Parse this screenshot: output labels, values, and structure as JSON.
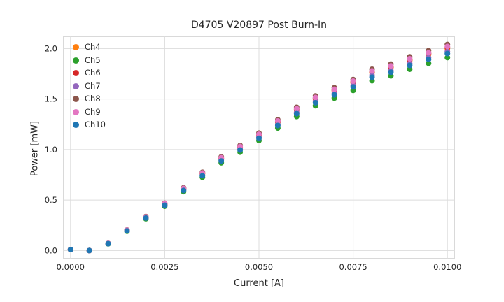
{
  "figure": {
    "title": "D4705 V20897 Post Burn-In",
    "xlabel": "Current [A]",
    "ylabel": "Power [mW]"
  },
  "chart_data": {
    "type": "scatter",
    "title": "D4705 V20897 Post Burn-In",
    "xlabel": "Current [A]",
    "ylabel": "Power [mW]",
    "grid": true,
    "grid_color": "#dcdcdc",
    "legend_position": "upper-left",
    "xlim": [
      -0.0002,
      0.0102
    ],
    "ylim": [
      -0.08,
      2.12
    ],
    "xticks": [
      0.0,
      0.0025,
      0.005,
      0.0075,
      0.01
    ],
    "xtick_labels": [
      "0.0000",
      "0.0025",
      "0.0050",
      "0.0075",
      "0.0100"
    ],
    "yticks": [
      0.0,
      0.5,
      1.0,
      1.5,
      2.0
    ],
    "ytick_labels": [
      "0.0",
      "0.5",
      "1.0",
      "1.5",
      "2.0"
    ],
    "x": [
      0.0,
      0.0005,
      0.001,
      0.0015,
      0.002,
      0.0025,
      0.003,
      0.0035,
      0.004,
      0.0045,
      0.005,
      0.0055,
      0.006,
      0.0065,
      0.007,
      0.0075,
      0.008,
      0.0085,
      0.009,
      0.0095,
      0.01
    ],
    "series": [
      {
        "name": "Ch4",
        "color": "#ff7f0e",
        "values": [
          0.01,
          0.0,
          0.07,
          0.2,
          0.33,
          0.46,
          0.61,
          0.76,
          0.91,
          1.02,
          1.14,
          1.27,
          1.39,
          1.5,
          1.58,
          1.66,
          1.76,
          1.81,
          1.88,
          1.94,
          2.0
        ]
      },
      {
        "name": "Ch5",
        "color": "#2ca02c",
        "values": [
          0.01,
          0.0,
          0.067,
          0.191,
          0.315,
          0.439,
          0.583,
          0.726,
          0.869,
          0.974,
          1.089,
          1.213,
          1.327,
          1.433,
          1.509,
          1.585,
          1.681,
          1.729,
          1.795,
          1.853,
          1.91
        ]
      },
      {
        "name": "Ch6",
        "color": "#d62728",
        "values": [
          0.01,
          0.0,
          0.07,
          0.201,
          0.332,
          0.462,
          0.613,
          0.764,
          0.915,
          1.025,
          1.146,
          1.276,
          1.397,
          1.508,
          1.588,
          1.668,
          1.769,
          1.819,
          1.889,
          1.95,
          2.01
        ]
      },
      {
        "name": "Ch7",
        "color": "#9467bd",
        "values": [
          0.01,
          0.0,
          0.069,
          0.197,
          0.325,
          0.453,
          0.601,
          0.749,
          0.896,
          1.005,
          1.123,
          1.251,
          1.369,
          1.478,
          1.556,
          1.635,
          1.734,
          1.783,
          1.852,
          1.911,
          1.97
        ]
      },
      {
        "name": "Ch8",
        "color": "#8c564b",
        "values": [
          0.01,
          0.0,
          0.071,
          0.204,
          0.337,
          0.469,
          0.622,
          0.775,
          0.928,
          1.04,
          1.163,
          1.295,
          1.418,
          1.53,
          1.612,
          1.693,
          1.795,
          1.846,
          1.918,
          1.979,
          2.04
        ]
      },
      {
        "name": "Ch9",
        "color": "#e377c2",
        "values": [
          0.01,
          0.0,
          0.071,
          0.202,
          0.333,
          0.465,
          0.616,
          0.768,
          0.919,
          1.03,
          1.151,
          1.283,
          1.404,
          1.515,
          1.596,
          1.677,
          1.778,
          1.828,
          1.899,
          1.959,
          2.02
        ]
      },
      {
        "name": "Ch10",
        "color": "#1f77b4",
        "values": [
          0.01,
          0.0,
          0.068,
          0.195,
          0.322,
          0.449,
          0.595,
          0.741,
          0.887,
          0.995,
          1.112,
          1.238,
          1.355,
          1.463,
          1.541,
          1.619,
          1.716,
          1.765,
          1.833,
          1.892,
          1.95
        ]
      }
    ]
  }
}
